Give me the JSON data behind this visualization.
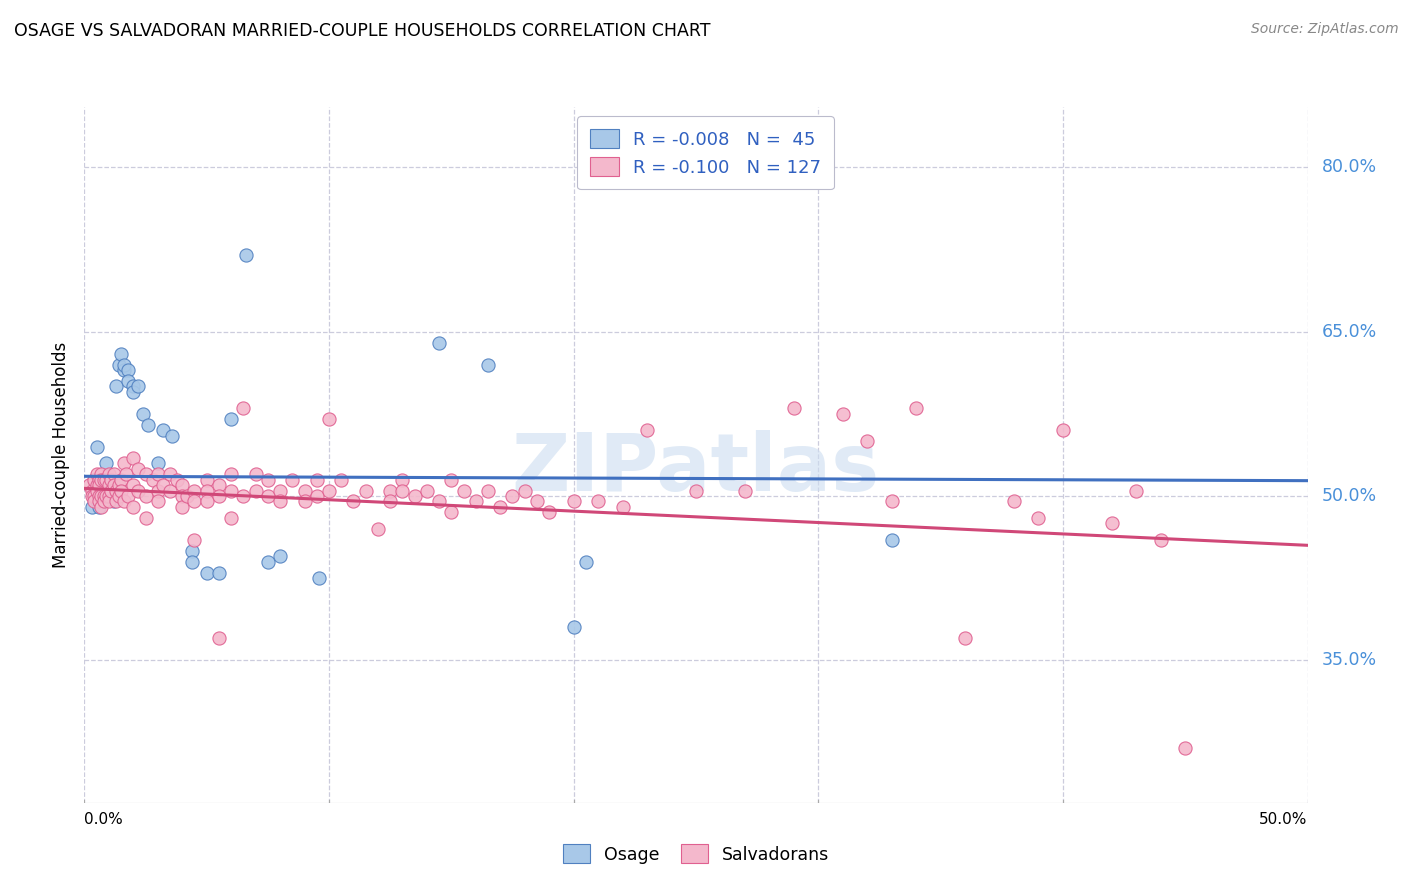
{
  "title": "OSAGE VS SALVADORAN MARRIED-COUPLE HOUSEHOLDS CORRELATION CHART",
  "source": "Source: ZipAtlas.com",
  "ylabel": "Married-couple Households",
  "ytick_labels": [
    "35.0%",
    "50.0%",
    "65.0%",
    "80.0%"
  ],
  "ytick_values": [
    0.35,
    0.5,
    0.65,
    0.8
  ],
  "xtick_labels": [
    "0.0%",
    "50.0%"
  ],
  "xlim": [
    0.0,
    0.5
  ],
  "ylim": [
    0.22,
    0.855
  ],
  "legend_line1": "R = -0.008   N =  45",
  "legend_line2": "R = -0.100   N = 127",
  "blue_color": "#a8c8e8",
  "pink_color": "#f4b8cc",
  "blue_edge_color": "#5080c0",
  "pink_edge_color": "#e06090",
  "blue_line_color": "#4070c0",
  "pink_line_color": "#d04878",
  "blue_scatter": [
    [
      0.003,
      0.49
    ],
    [
      0.004,
      0.505
    ],
    [
      0.004,
      0.515
    ],
    [
      0.005,
      0.495
    ],
    [
      0.005,
      0.51
    ],
    [
      0.005,
      0.5
    ],
    [
      0.005,
      0.545
    ],
    [
      0.006,
      0.49
    ],
    [
      0.006,
      0.5
    ],
    [
      0.007,
      0.515
    ],
    [
      0.007,
      0.5
    ],
    [
      0.008,
      0.495
    ],
    [
      0.009,
      0.53
    ],
    [
      0.01,
      0.515
    ],
    [
      0.01,
      0.5
    ],
    [
      0.012,
      0.495
    ],
    [
      0.013,
      0.6
    ],
    [
      0.014,
      0.62
    ],
    [
      0.015,
      0.63
    ],
    [
      0.016,
      0.615
    ],
    [
      0.016,
      0.62
    ],
    [
      0.018,
      0.615
    ],
    [
      0.018,
      0.605
    ],
    [
      0.02,
      0.6
    ],
    [
      0.02,
      0.595
    ],
    [
      0.022,
      0.6
    ],
    [
      0.024,
      0.575
    ],
    [
      0.026,
      0.565
    ],
    [
      0.03,
      0.53
    ],
    [
      0.032,
      0.56
    ],
    [
      0.036,
      0.555
    ],
    [
      0.044,
      0.45
    ],
    [
      0.044,
      0.44
    ],
    [
      0.05,
      0.43
    ],
    [
      0.055,
      0.43
    ],
    [
      0.06,
      0.57
    ],
    [
      0.066,
      0.72
    ],
    [
      0.075,
      0.44
    ],
    [
      0.08,
      0.445
    ],
    [
      0.096,
      0.425
    ],
    [
      0.145,
      0.64
    ],
    [
      0.165,
      0.62
    ],
    [
      0.2,
      0.38
    ],
    [
      0.205,
      0.44
    ],
    [
      0.33,
      0.46
    ]
  ],
  "pink_scatter": [
    [
      0.002,
      0.51
    ],
    [
      0.003,
      0.505
    ],
    [
      0.003,
      0.5
    ],
    [
      0.004,
      0.515
    ],
    [
      0.004,
      0.5
    ],
    [
      0.004,
      0.495
    ],
    [
      0.005,
      0.52
    ],
    [
      0.005,
      0.51
    ],
    [
      0.005,
      0.505
    ],
    [
      0.006,
      0.515
    ],
    [
      0.006,
      0.51
    ],
    [
      0.006,
      0.5
    ],
    [
      0.006,
      0.495
    ],
    [
      0.007,
      0.52
    ],
    [
      0.007,
      0.515
    ],
    [
      0.007,
      0.5
    ],
    [
      0.007,
      0.49
    ],
    [
      0.008,
      0.515
    ],
    [
      0.008,
      0.5
    ],
    [
      0.008,
      0.495
    ],
    [
      0.009,
      0.515
    ],
    [
      0.009,
      0.5
    ],
    [
      0.01,
      0.52
    ],
    [
      0.01,
      0.51
    ],
    [
      0.01,
      0.5
    ],
    [
      0.01,
      0.495
    ],
    [
      0.011,
      0.515
    ],
    [
      0.011,
      0.505
    ],
    [
      0.012,
      0.52
    ],
    [
      0.012,
      0.51
    ],
    [
      0.013,
      0.505
    ],
    [
      0.013,
      0.495
    ],
    [
      0.014,
      0.51
    ],
    [
      0.014,
      0.5
    ],
    [
      0.015,
      0.515
    ],
    [
      0.015,
      0.505
    ],
    [
      0.016,
      0.53
    ],
    [
      0.016,
      0.495
    ],
    [
      0.017,
      0.52
    ],
    [
      0.018,
      0.5
    ],
    [
      0.02,
      0.535
    ],
    [
      0.02,
      0.51
    ],
    [
      0.02,
      0.49
    ],
    [
      0.022,
      0.525
    ],
    [
      0.022,
      0.505
    ],
    [
      0.025,
      0.52
    ],
    [
      0.025,
      0.5
    ],
    [
      0.025,
      0.48
    ],
    [
      0.028,
      0.515
    ],
    [
      0.03,
      0.52
    ],
    [
      0.03,
      0.505
    ],
    [
      0.03,
      0.495
    ],
    [
      0.032,
      0.51
    ],
    [
      0.035,
      0.52
    ],
    [
      0.035,
      0.505
    ],
    [
      0.038,
      0.515
    ],
    [
      0.04,
      0.51
    ],
    [
      0.04,
      0.5
    ],
    [
      0.04,
      0.49
    ],
    [
      0.042,
      0.5
    ],
    [
      0.045,
      0.505
    ],
    [
      0.045,
      0.495
    ],
    [
      0.045,
      0.46
    ],
    [
      0.05,
      0.515
    ],
    [
      0.05,
      0.505
    ],
    [
      0.05,
      0.495
    ],
    [
      0.055,
      0.51
    ],
    [
      0.055,
      0.5
    ],
    [
      0.055,
      0.37
    ],
    [
      0.06,
      0.52
    ],
    [
      0.06,
      0.505
    ],
    [
      0.06,
      0.48
    ],
    [
      0.065,
      0.58
    ],
    [
      0.065,
      0.5
    ],
    [
      0.07,
      0.52
    ],
    [
      0.07,
      0.505
    ],
    [
      0.075,
      0.515
    ],
    [
      0.075,
      0.5
    ],
    [
      0.08,
      0.505
    ],
    [
      0.08,
      0.495
    ],
    [
      0.085,
      0.515
    ],
    [
      0.09,
      0.505
    ],
    [
      0.09,
      0.495
    ],
    [
      0.095,
      0.515
    ],
    [
      0.095,
      0.5
    ],
    [
      0.1,
      0.505
    ],
    [
      0.1,
      0.57
    ],
    [
      0.105,
      0.515
    ],
    [
      0.11,
      0.495
    ],
    [
      0.115,
      0.505
    ],
    [
      0.12,
      0.47
    ],
    [
      0.125,
      0.505
    ],
    [
      0.125,
      0.495
    ],
    [
      0.13,
      0.515
    ],
    [
      0.13,
      0.505
    ],
    [
      0.135,
      0.5
    ],
    [
      0.14,
      0.505
    ],
    [
      0.145,
      0.495
    ],
    [
      0.15,
      0.515
    ],
    [
      0.15,
      0.485
    ],
    [
      0.155,
      0.505
    ],
    [
      0.16,
      0.495
    ],
    [
      0.165,
      0.505
    ],
    [
      0.17,
      0.49
    ],
    [
      0.175,
      0.5
    ],
    [
      0.18,
      0.505
    ],
    [
      0.185,
      0.495
    ],
    [
      0.19,
      0.485
    ],
    [
      0.2,
      0.495
    ],
    [
      0.21,
      0.495
    ],
    [
      0.22,
      0.49
    ],
    [
      0.23,
      0.56
    ],
    [
      0.25,
      0.505
    ],
    [
      0.27,
      0.505
    ],
    [
      0.29,
      0.58
    ],
    [
      0.31,
      0.575
    ],
    [
      0.32,
      0.55
    ],
    [
      0.33,
      0.495
    ],
    [
      0.34,
      0.58
    ],
    [
      0.36,
      0.37
    ],
    [
      0.38,
      0.495
    ],
    [
      0.39,
      0.48
    ],
    [
      0.4,
      0.56
    ],
    [
      0.42,
      0.475
    ],
    [
      0.43,
      0.505
    ],
    [
      0.44,
      0.46
    ],
    [
      0.45,
      0.27
    ]
  ],
  "blue_trend_x": [
    0.0,
    0.5
  ],
  "blue_trend_y": [
    0.518,
    0.514
  ],
  "pink_trend_x": [
    0.0,
    0.5
  ],
  "pink_trend_y": [
    0.507,
    0.455
  ],
  "watermark": "ZIPatlas",
  "grid_color": "#ccccdd",
  "background_color": "#ffffff",
  "x_grid_ticks": [
    0.0,
    0.1,
    0.2,
    0.3,
    0.4,
    0.5
  ]
}
